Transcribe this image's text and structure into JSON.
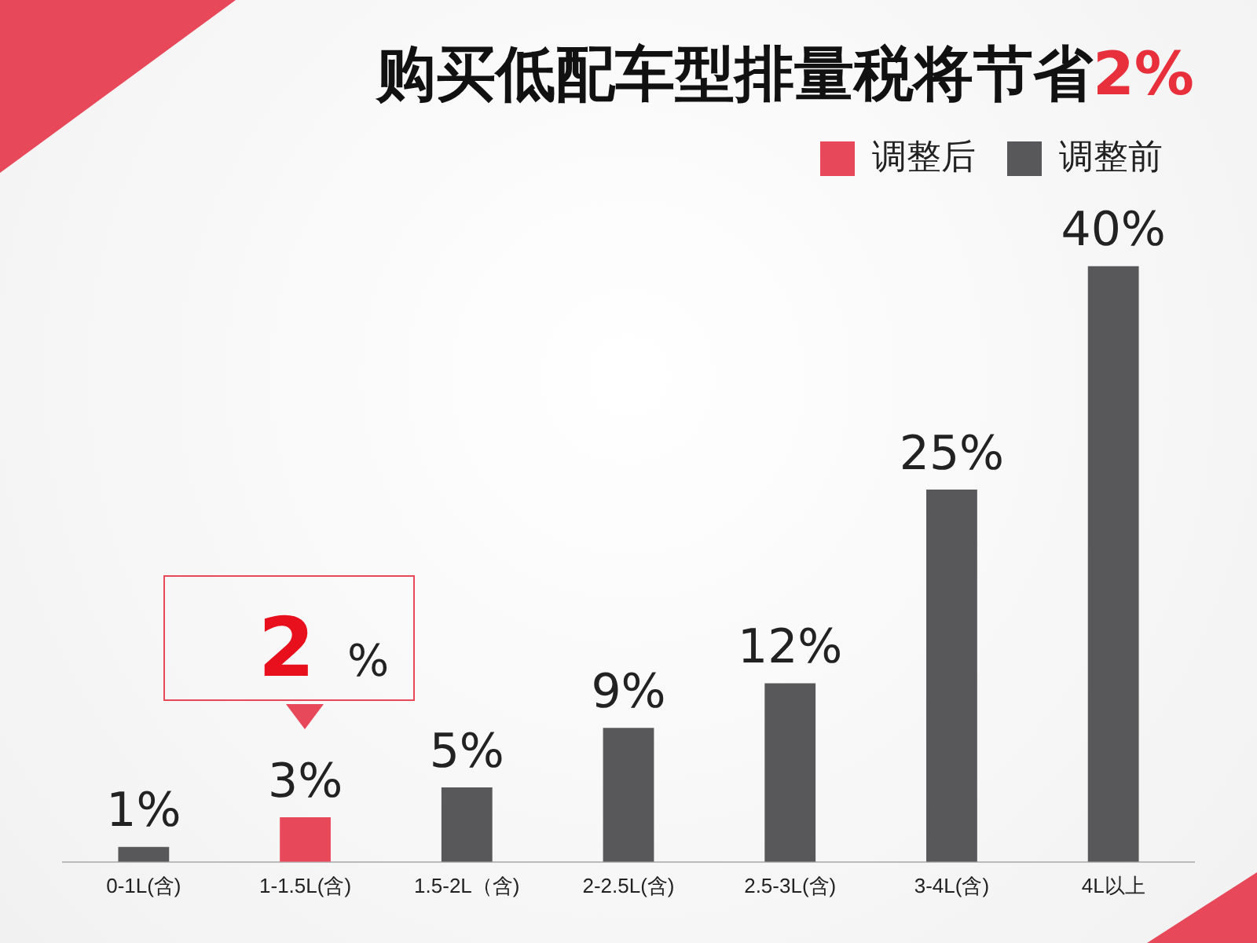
{
  "chart_data": {
    "type": "bar",
    "title": "购买低配车型排量税将节省2%",
    "categories": [
      "0-1L(含)",
      "1-1.5L(含)",
      "1.5-2L（含)",
      "2-2.5L(含)",
      "2.5-3L(含)",
      "3-4L(含)",
      "4L以上"
    ],
    "series": [
      {
        "name": "调整后",
        "color": "#e8495a",
        "values": [
          null,
          3,
          null,
          null,
          null,
          null,
          null
        ],
        "value_labels": [
          null,
          "3%",
          null,
          null,
          null,
          null,
          null
        ]
      },
      {
        "name": "调整前",
        "color": "#58585a",
        "values": [
          1,
          null,
          5,
          9,
          12,
          25,
          40
        ],
        "value_labels": [
          "1%",
          null,
          "5%",
          "9%",
          "12%",
          "25%",
          "40%"
        ]
      }
    ],
    "annotations": [
      {
        "text": "2 %",
        "x": "1-1.5L(含)",
        "y": 3
      }
    ],
    "legend": "top right",
    "grid": false
  }
}
